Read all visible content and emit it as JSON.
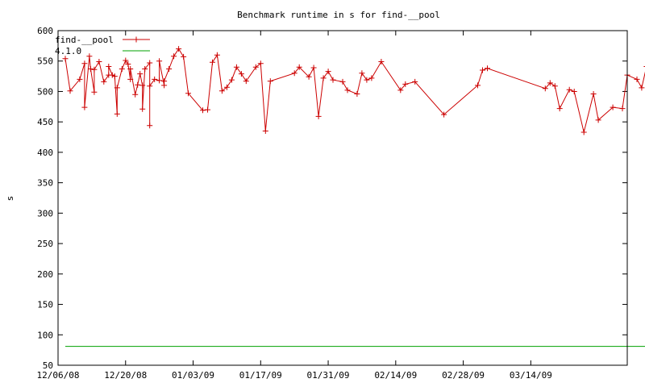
{
  "chart_data": {
    "type": "line",
    "title": "Benchmark runtime in s for find-__pool",
    "xlabel": "",
    "ylabel": "s",
    "xlim": [
      "2008-12-06",
      "2009-04-03"
    ],
    "ylim": [
      50,
      600
    ],
    "yticks": [
      50,
      100,
      150,
      200,
      250,
      300,
      350,
      400,
      450,
      500,
      550,
      600
    ],
    "xticks": [
      "12/06/08",
      "12/20/08",
      "01/03/09",
      "01/17/09",
      "01/31/09",
      "02/14/09",
      "02/28/09",
      "03/14/09"
    ],
    "grid": false,
    "legend_position": "top-left",
    "series": [
      {
        "name": "find-__pool",
        "color": "#cc0000",
        "marker": "plus",
        "points": [
          [
            "2008-12-07T12:00",
            554
          ],
          [
            "2008-12-08T12:00",
            501
          ],
          [
            "2008-12-10T12:00",
            520
          ],
          [
            "2008-12-11T12:00",
            546
          ],
          [
            "2008-12-11T12:00",
            474
          ],
          [
            "2008-12-12T12:00",
            558
          ],
          [
            "2008-12-12T18:00",
            537
          ],
          [
            "2008-12-13T12:00",
            499
          ],
          [
            "2008-12-13T12:00",
            536
          ],
          [
            "2008-12-14T12:00",
            549
          ],
          [
            "2008-12-15T12:00",
            516
          ],
          [
            "2008-12-16T12:00",
            527
          ],
          [
            "2008-12-16T12:00",
            541
          ],
          [
            "2008-12-17T06:00",
            527
          ],
          [
            "2008-12-17T18:00",
            525
          ],
          [
            "2008-12-18T06:00",
            463
          ],
          [
            "2008-12-18T06:00",
            506
          ],
          [
            "2008-12-19T06:00",
            537
          ],
          [
            "2008-12-20T00:00",
            551
          ],
          [
            "2008-12-20T12:00",
            545
          ],
          [
            "2008-12-21T00:00",
            520
          ],
          [
            "2008-12-21T00:00",
            537
          ],
          [
            "2008-12-22T00:00",
            495
          ],
          [
            "2008-12-22T12:00",
            511
          ],
          [
            "2008-12-23T00:00",
            529
          ],
          [
            "2008-12-23T12:00",
            510
          ],
          [
            "2008-12-23T12:00",
            471
          ],
          [
            "2008-12-24T00:00",
            537
          ],
          [
            "2008-12-25T00:00",
            547
          ],
          [
            "2008-12-25T00:00",
            444
          ],
          [
            "2008-12-25T00:00",
            509
          ],
          [
            "2008-12-26T00:00",
            520
          ],
          [
            "2008-12-27T00:00",
            518
          ],
          [
            "2008-12-27T00:00",
            550
          ],
          [
            "2008-12-28T00:00",
            510
          ],
          [
            "2008-12-28T00:00",
            517
          ],
          [
            "2008-12-29T00:00",
            537
          ],
          [
            "2008-12-30T00:00",
            558
          ],
          [
            "2008-12-31T00:00",
            570
          ],
          [
            "2009-01-01T00:00",
            557
          ],
          [
            "2009-01-02T00:00",
            497
          ],
          [
            "2009-01-05T00:00",
            469
          ],
          [
            "2009-01-06T00:00",
            470
          ],
          [
            "2009-01-07T00:00",
            548
          ],
          [
            "2009-01-08T00:00",
            560
          ],
          [
            "2009-01-09T00:00",
            501
          ],
          [
            "2009-01-10T00:00",
            507
          ],
          [
            "2009-01-11T00:00",
            519
          ],
          [
            "2009-01-12T00:00",
            540
          ],
          [
            "2009-01-13T00:00",
            529
          ],
          [
            "2009-01-14T00:00",
            517
          ],
          [
            "2009-01-16T00:00",
            540
          ],
          [
            "2009-01-17T00:00",
            546
          ],
          [
            "2009-01-18T00:00",
            435
          ],
          [
            "2009-01-19T00:00",
            517
          ],
          [
            "2009-01-24T00:00",
            530
          ],
          [
            "2009-01-25T00:00",
            540
          ],
          [
            "2009-01-27T00:00",
            524
          ],
          [
            "2009-01-28T00:00",
            539
          ],
          [
            "2009-01-29T00:00",
            459
          ],
          [
            "2009-01-30T00:00",
            522
          ],
          [
            "2009-01-31T00:00",
            533
          ],
          [
            "2009-02-01T00:00",
            519
          ],
          [
            "2009-02-03T00:00",
            516
          ],
          [
            "2009-02-04T00:00",
            502
          ],
          [
            "2009-02-06T00:00",
            496
          ],
          [
            "2009-02-07T00:00",
            530
          ],
          [
            "2009-02-08T00:00",
            519
          ],
          [
            "2009-02-09T00:00",
            522
          ],
          [
            "2009-02-11T00:00",
            549
          ],
          [
            "2009-02-15T00:00",
            502
          ],
          [
            "2009-02-16T00:00",
            512
          ],
          [
            "2009-02-18T00:00",
            516
          ],
          [
            "2009-02-24T00:00",
            462
          ],
          [
            "2009-03-03T00:00",
            510
          ],
          [
            "2009-03-04T00:00",
            535
          ],
          [
            "2009-03-05T00:00",
            538
          ],
          [
            "2009-03-17T00:00",
            505
          ],
          [
            "2009-03-18T00:00",
            514
          ],
          [
            "2009-03-19T00:00",
            509
          ],
          [
            "2009-03-20T00:00",
            472
          ],
          [
            "2009-03-22T00:00",
            503
          ],
          [
            "2009-03-23T00:00",
            500
          ],
          [
            "2009-03-25T00:00",
            433
          ],
          [
            "2009-03-27T00:00",
            496
          ],
          [
            "2009-03-28T00:00",
            453
          ],
          [
            "2009-03-31T00:00",
            474
          ],
          [
            "2009-04-02T00:00",
            472
          ],
          [
            "2009-04-03T00:00",
            527
          ],
          [
            "2009-04-05T00:00",
            520
          ],
          [
            "2009-04-06T00:00",
            506
          ],
          [
            "2009-04-07T00:00",
            541
          ]
        ]
      },
      {
        "name": "4.1.0",
        "color": "#00a000",
        "marker": "none",
        "points": [
          [
            "2008-12-07T12:00",
            81
          ],
          [
            "2009-04-07T00:00",
            81
          ]
        ]
      }
    ]
  }
}
